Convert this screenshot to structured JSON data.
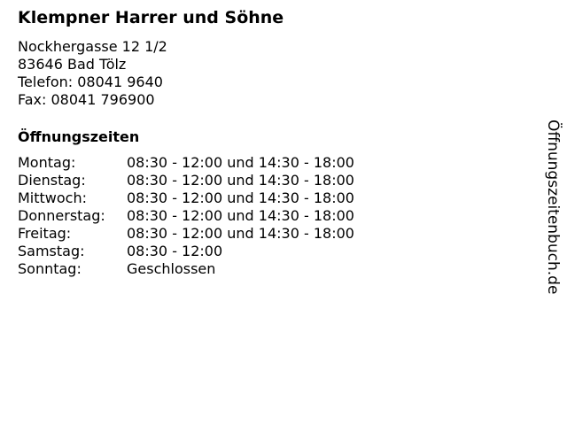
{
  "business": {
    "name": "Klempner Harrer und Söhne",
    "street": "Nockhergasse 12 1/2",
    "city": "83646 Bad Tölz",
    "phone": "Telefon: 08041 9640",
    "fax": "Fax: 08041 796900"
  },
  "hours_heading": "Öffnungszeiten",
  "hours": [
    {
      "day": "Montag:",
      "time": "08:30 - 12:00 und 14:30 - 18:00"
    },
    {
      "day": "Dienstag:",
      "time": "08:30 - 12:00 und 14:30 - 18:00"
    },
    {
      "day": "Mittwoch:",
      "time": "08:30 - 12:00 und 14:30 - 18:00"
    },
    {
      "day": "Donnerstag:",
      "time": "08:30 - 12:00 und 14:30 - 18:00"
    },
    {
      "day": "Freitag:",
      "time": "08:30 - 12:00 und 14:30 - 18:00"
    },
    {
      "day": "Samstag:",
      "time": "08:30 - 12:00"
    },
    {
      "day": "Sonntag:",
      "time": "Geschlossen"
    }
  ],
  "brand": "Öffnungszeitenbuch.de"
}
